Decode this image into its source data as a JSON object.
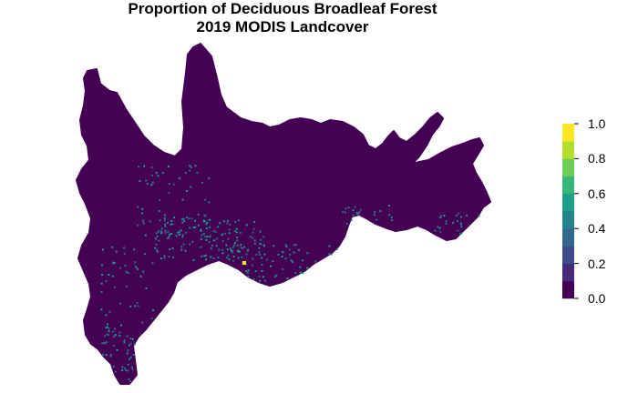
{
  "title": {
    "line1": "Proportion of Deciduous Broadleaf Forest",
    "line2": "2019 MODIS Landcover"
  },
  "legend": {
    "ticks": [
      "0.0",
      "0.2",
      "0.4",
      "0.6",
      "0.8",
      "1.0"
    ],
    "tick_values": [
      0.0,
      0.2,
      0.4,
      0.6,
      0.8,
      1.0
    ],
    "range": [
      0,
      1
    ],
    "classes": 10,
    "colors": [
      "#440154",
      "#482878",
      "#3E4A89",
      "#31688E",
      "#26828E",
      "#1F9E89",
      "#35B779",
      "#6DCD59",
      "#B4DE2C",
      "#FDE725"
    ]
  },
  "map": {
    "background_fill": "#440154",
    "highlight_colors": [
      "#31688E",
      "#26828E",
      "#1F9E89",
      "#FDE725"
    ]
  }
}
